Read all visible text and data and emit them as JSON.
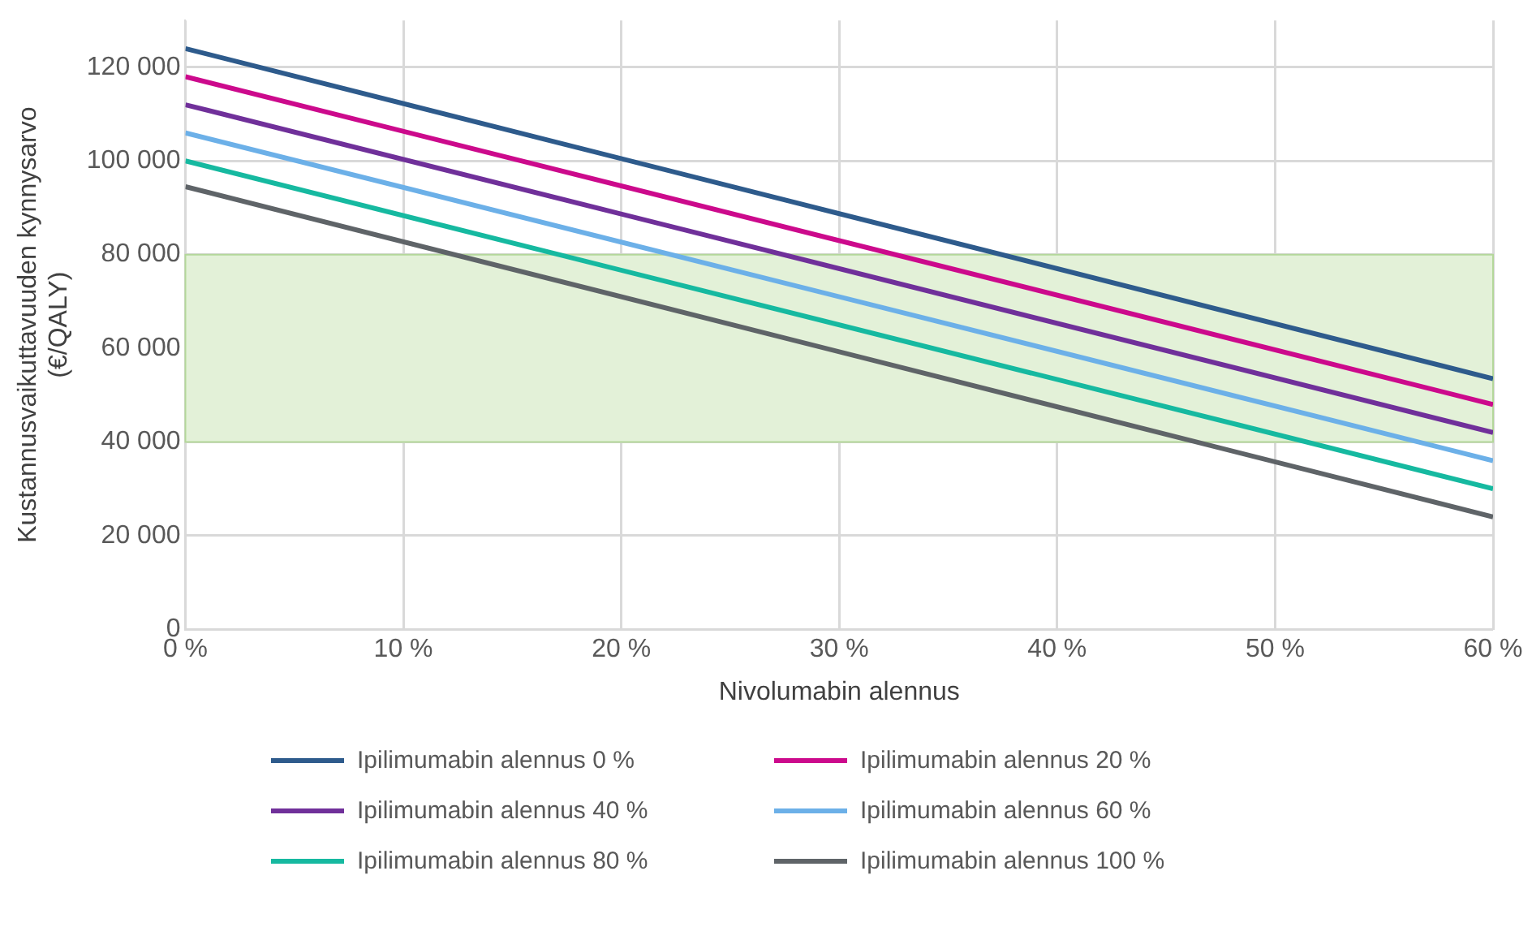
{
  "chart_data": {
    "type": "line",
    "xlabel": "Nivolumabin alennus",
    "ylabel": "Kustannusvaikuttavuuden kynnysarvo (€/QALY)",
    "x": [
      0,
      60
    ],
    "series": [
      {
        "name": "Ipilimumabin alennus 0 %",
        "color": "#2e5b8c",
        "values": [
          124000,
          53500
        ]
      },
      {
        "name": "Ipilimumabin alennus 20 %",
        "color": "#cc0a8c",
        "values": [
          118000,
          48000
        ]
      },
      {
        "name": "Ipilimumabin alennus 40 %",
        "color": "#70309a",
        "values": [
          112000,
          42000
        ]
      },
      {
        "name": "Ipilimumabin alennus 60 %",
        "color": "#6cb0e8",
        "values": [
          106000,
          36000
        ]
      },
      {
        "name": "Ipilimumabin alennus 80 %",
        "color": "#16b9a0",
        "values": [
          100000,
          30000
        ]
      },
      {
        "name": "Ipilimumabin alennus 100 %",
        "color": "#5f6468",
        "values": [
          94500,
          24000
        ]
      }
    ],
    "xlim": [
      0,
      60
    ],
    "xticks": [
      {
        "value": 0,
        "label": "0 %"
      },
      {
        "value": 10,
        "label": "10 %"
      },
      {
        "value": 20,
        "label": "20 %"
      },
      {
        "value": 30,
        "label": "30 %"
      },
      {
        "value": 40,
        "label": "40 %"
      },
      {
        "value": 50,
        "label": "50 %"
      },
      {
        "value": 60,
        "label": "60 %"
      }
    ],
    "ylim": [
      0,
      130000
    ],
    "yticks": [
      {
        "value": 0,
        "label": "0"
      },
      {
        "value": 20000,
        "label": "20 000"
      },
      {
        "value": 40000,
        "label": "40 000"
      },
      {
        "value": 60000,
        "label": "60 000"
      },
      {
        "value": 80000,
        "label": "80 000"
      },
      {
        "value": 100000,
        "label": "100 000"
      },
      {
        "value": 120000,
        "label": "120 000"
      }
    ],
    "bands": [
      {
        "axis": "y",
        "from": 40000,
        "to": 80000,
        "color": "#e3f1d8"
      }
    ],
    "grid": true,
    "legend": "bottom",
    "marker": "none",
    "line_style": "solid"
  }
}
